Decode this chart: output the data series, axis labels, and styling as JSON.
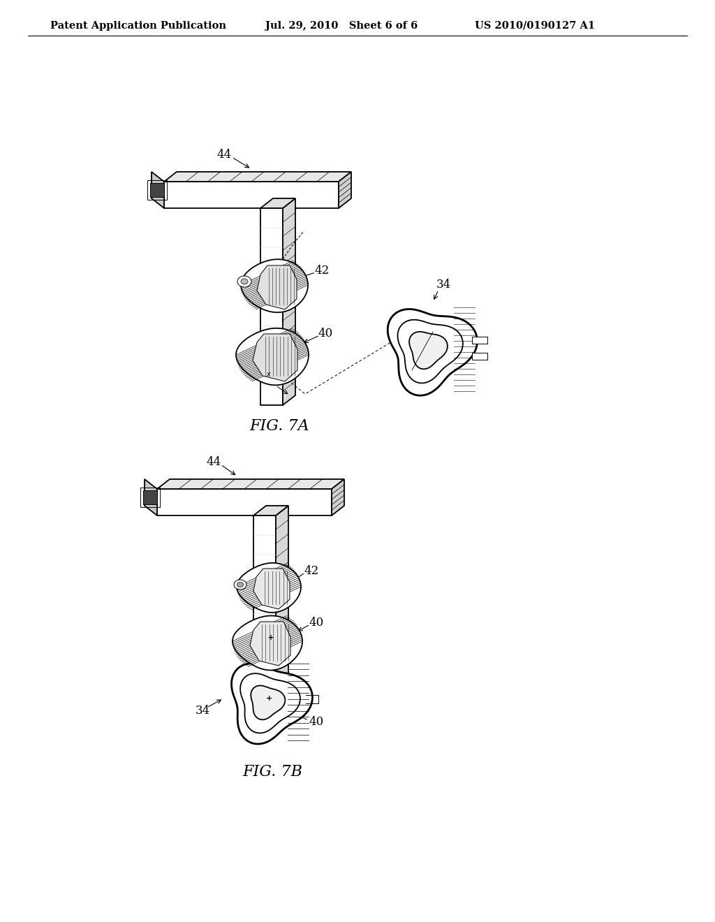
{
  "background_color": "#ffffff",
  "header_left": "Patent Application Publication",
  "header_mid": "Jul. 29, 2010   Sheet 6 of 6",
  "header_right": "US 2010/0190127 A1",
  "header_fontsize": 10.5,
  "fig_label_7a": "FIG. 7A",
  "fig_label_7b": "FIG. 7B",
  "line_color": "#000000",
  "label_fontsize": 12,
  "fig_label_fontsize": 16
}
